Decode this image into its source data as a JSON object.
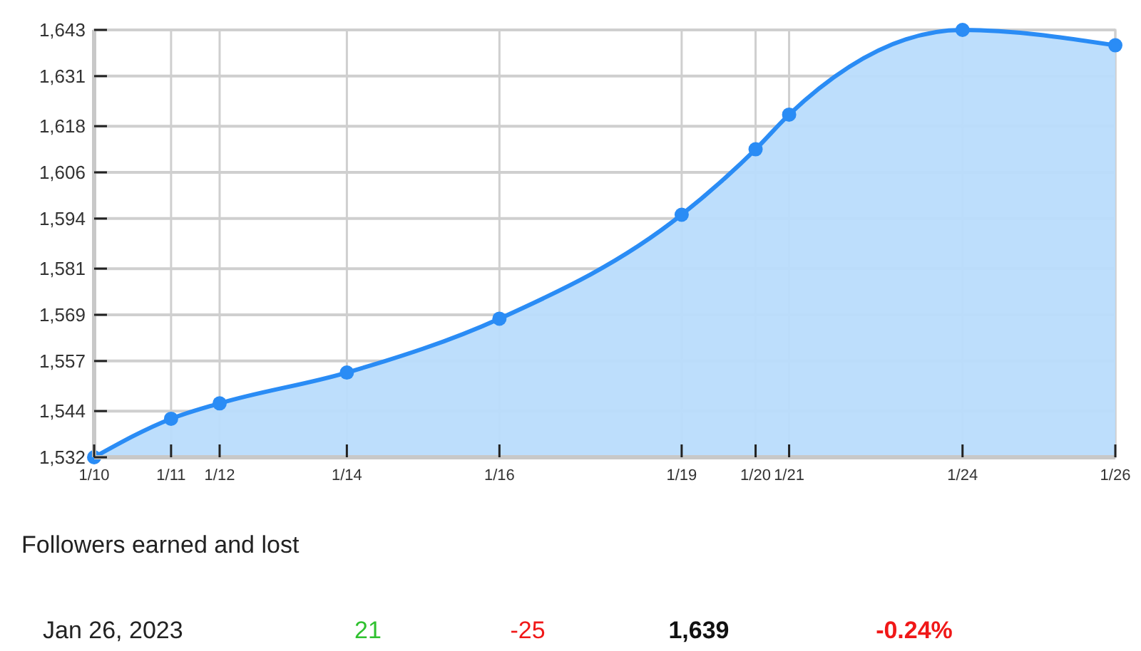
{
  "chart_data": {
    "type": "area",
    "x": [
      "2023-01-10T00:00",
      "2023-01-11T05:50",
      "2023-01-12T00:40",
      "2023-01-14T02:00",
      "2023-01-16T13:10",
      "2023-01-19T11:50",
      "2023-01-20T16:30",
      "2023-01-21T05:30",
      "2023-01-24T00:45",
      "2023-01-26T12:00"
    ],
    "series": [
      {
        "color": "#2a8cf5",
        "values": [
          1532,
          1542,
          1546,
          1554,
          1568,
          1595,
          1612,
          1621,
          1643,
          1639
        ]
      }
    ],
    "xlim": [
      "2023-01-10T00:00",
      "2023-01-26T12:00"
    ],
    "xticks": [
      {
        "value": "2023-01-10T00:00",
        "label": "1/10"
      },
      {
        "value": "2023-01-11T05:50",
        "label": "1/11"
      },
      {
        "value": "2023-01-12T00:40",
        "label": "1/12"
      },
      {
        "value": "2023-01-14T02:00",
        "label": "1/14"
      },
      {
        "value": "2023-01-16T13:10",
        "label": "1/16"
      },
      {
        "value": "2023-01-19T11:50",
        "label": "1/19"
      },
      {
        "value": "2023-01-20T16:30",
        "label": "1/20"
      },
      {
        "value": "2023-01-21T05:30",
        "label": "1/21"
      },
      {
        "value": "2023-01-24T00:45",
        "label": "1/24"
      },
      {
        "value": "2023-01-26T12:00",
        "label": "1/26"
      }
    ],
    "ylim": [
      1532,
      1643
    ],
    "yticks": [
      {
        "value": 1532,
        "label": "1,532"
      },
      {
        "value": 1544,
        "label": "1,544"
      },
      {
        "value": 1557,
        "label": "1,557"
      },
      {
        "value": 1569,
        "label": "1,569"
      },
      {
        "value": 1581,
        "label": "1,581"
      },
      {
        "value": 1594,
        "label": "1,594"
      },
      {
        "value": 1606,
        "label": "1,606"
      },
      {
        "value": 1618,
        "label": "1,618"
      },
      {
        "value": 1631,
        "label": "1,631"
      },
      {
        "value": 1643,
        "label": "1,643"
      }
    ],
    "grid": true,
    "marker": "circle",
    "annotations": [
      "Followers earned and lost",
      "Jan 26, 2023",
      "21",
      "-25",
      "1,639",
      "-0.24%"
    ]
  }
}
